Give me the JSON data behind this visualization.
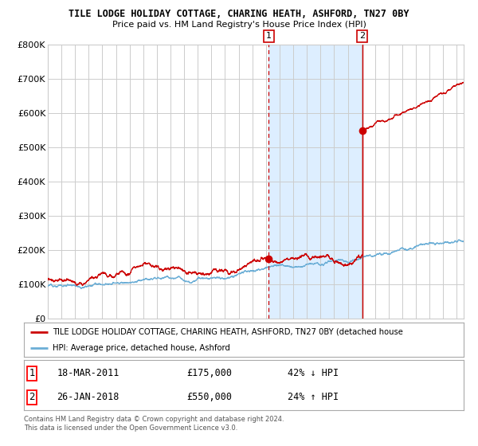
{
  "title": "TILE LODGE HOLIDAY COTTAGE, CHARING HEATH, ASHFORD, TN27 0BY",
  "subtitle": "Price paid vs. HM Land Registry's House Price Index (HPI)",
  "x_start_year": 1995,
  "x_end_year": 2025,
  "y_min": 0,
  "y_max": 800000,
  "y_ticks": [
    0,
    100000,
    200000,
    300000,
    400000,
    500000,
    600000,
    700000,
    800000
  ],
  "y_tick_labels": [
    "£0",
    "£100K",
    "£200K",
    "£300K",
    "£400K",
    "£500K",
    "£600K",
    "£700K",
    "£800K"
  ],
  "sale1_date": 2011.21,
  "sale1_price": 175000,
  "sale1_label": "1",
  "sale1_year_label": "18-MAR-2011",
  "sale1_price_label": "£175,000",
  "sale1_hpi_label": "42% ↓ HPI",
  "sale2_date": 2018.07,
  "sale2_price": 550000,
  "sale2_label": "2",
  "sale2_year_label": "26-JAN-2018",
  "sale2_price_label": "£550,000",
  "sale2_hpi_label": "24% ↑ HPI",
  "hpi_color": "#6baed6",
  "price_color": "#cc0000",
  "shade_color": "#ddeeff",
  "grid_color": "#cccccc",
  "bg_color": "#ffffff",
  "legend_label_price": "TILE LODGE HOLIDAY COTTAGE, CHARING HEATH, ASHFORD, TN27 0BY (detached house",
  "legend_label_hpi": "HPI: Average price, detached house, Ashford",
  "footer1": "Contains HM Land Registry data © Crown copyright and database right 2024.",
  "footer2": "This data is licensed under the Open Government Licence v3.0."
}
